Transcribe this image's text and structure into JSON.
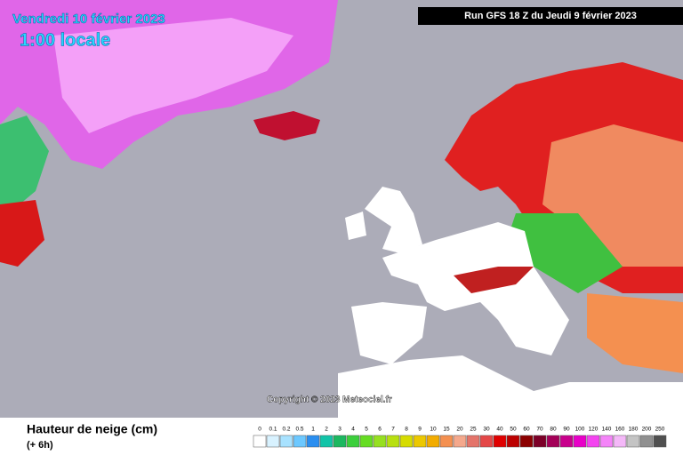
{
  "header": {
    "date": "Vendredi 10 février 2023",
    "time": "1:00 locale",
    "run": "Run GFS 18 Z du Jeudi 9 février 2023"
  },
  "copyright": "Copyright © 2023 Meteociel.fr",
  "legend": {
    "title": "Hauteur de neige (cm)",
    "subtitle": "(+ 6h)",
    "items": [
      {
        "label": "0",
        "color": "#ffffff"
      },
      {
        "label": "0.1",
        "color": "#d8f2ff"
      },
      {
        "label": "0.2",
        "color": "#a8e2ff"
      },
      {
        "label": "0.5",
        "color": "#6cc8ff"
      },
      {
        "label": "1",
        "color": "#2a8ef0"
      },
      {
        "label": "2",
        "color": "#12c4a8"
      },
      {
        "label": "3",
        "color": "#1cb860"
      },
      {
        "label": "4",
        "color": "#3ccf3c"
      },
      {
        "label": "5",
        "color": "#66dd22"
      },
      {
        "label": "6",
        "color": "#96e020"
      },
      {
        "label": "7",
        "color": "#b8e010"
      },
      {
        "label": "8",
        "color": "#d6dc00"
      },
      {
        "label": "9",
        "color": "#ecc800"
      },
      {
        "label": "10",
        "color": "#f2ac00"
      },
      {
        "label": "15",
        "color": "#f49050"
      },
      {
        "label": "20",
        "color": "#f4a88c"
      },
      {
        "label": "25",
        "color": "#e4746a"
      },
      {
        "label": "30",
        "color": "#e44848"
      },
      {
        "label": "40",
        "color": "#e00000"
      },
      {
        "label": "50",
        "color": "#bc0000"
      },
      {
        "label": "60",
        "color": "#8c0000"
      },
      {
        "label": "70",
        "color": "#7c0028"
      },
      {
        "label": "80",
        "color": "#a40058"
      },
      {
        "label": "90",
        "color": "#c8008c"
      },
      {
        "label": "100",
        "color": "#e800c8"
      },
      {
        "label": "120",
        "color": "#f444f0"
      },
      {
        "label": "140",
        "color": "#f484f8"
      },
      {
        "label": "160",
        "color": "#f4b8f8"
      },
      {
        "label": "180",
        "color": "#c4c4c4"
      },
      {
        "label": "200",
        "color": "#909090"
      },
      {
        "label": "250",
        "color": "#505050"
      }
    ]
  }
}
